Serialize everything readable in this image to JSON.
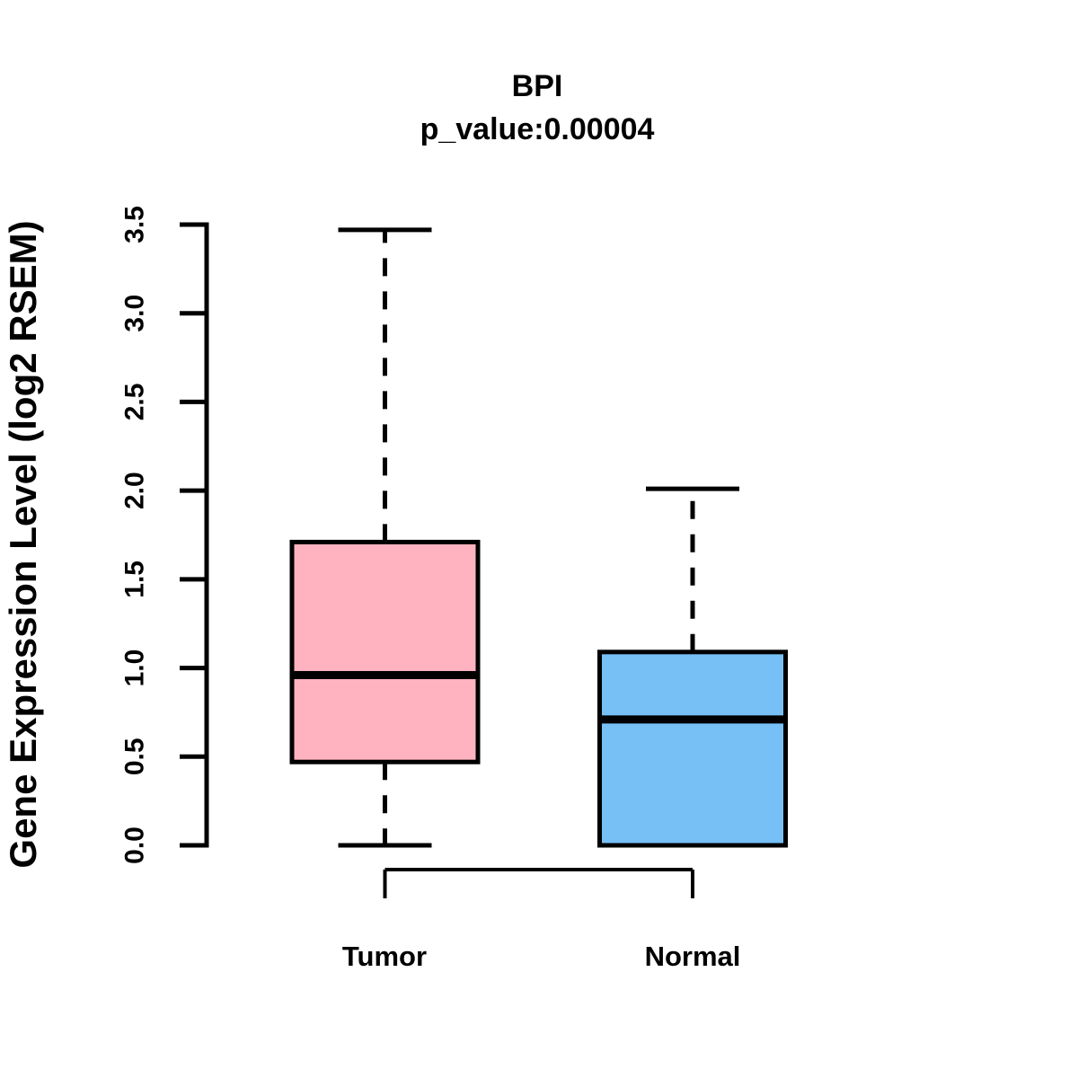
{
  "figure": {
    "background": "#FFFFFF"
  },
  "chart_data": {
    "type": "boxplot",
    "title": "BPI",
    "p_value_label": "p_value:0.00004",
    "p_value": 4e-05,
    "ylabel": "Gene Expression Level (log2 RSEM)",
    "xlabel": "",
    "ylim": [
      0,
      3.5
    ],
    "ytick_step": 0.5,
    "ytick_labels": [
      "0.0",
      "0.5",
      "1.0",
      "1.5",
      "2.0",
      "2.5",
      "3.0",
      "3.5"
    ],
    "categories": [
      "Tumor",
      "Normal"
    ],
    "grid": false,
    "legend": false,
    "stroke_color": "#000000",
    "series": [
      {
        "name": "Tumor",
        "fill_color": "#FFB3C1",
        "whisker_low": 0.0,
        "q1": 0.47,
        "median": 0.96,
        "q3": 1.71,
        "whisker_high": 3.47
      },
      {
        "name": "Normal",
        "fill_color": "#77C0F5",
        "whisker_low": 0.0,
        "q1": 0.0,
        "median": 0.71,
        "q3": 1.09,
        "whisker_high": 2.01
      }
    ]
  }
}
